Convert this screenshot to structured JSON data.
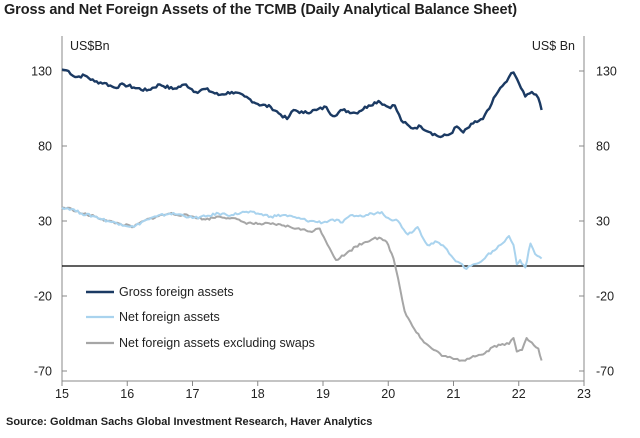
{
  "title": "Gross and Net Foreign Assets of the TCMB (Daily Analytical Balance Sheet)",
  "source": "Source: Goldman Sachs Global Investment Research, Haver Analytics",
  "colors": {
    "gross": "#1b3a63",
    "net": "#a9d3ee",
    "net_ex_swaps": "#a6a6a6",
    "zero_line": "#000000",
    "axis": "#888888"
  },
  "chart_data": {
    "type": "line",
    "title": "Gross and Net Foreign Assets of the TCMB (Daily Analytical Balance Sheet)",
    "ylabel_left": "US$Bn",
    "ylabel_right": "US$ Bn",
    "xlim": [
      15,
      23
    ],
    "ylim": [
      -70,
      130
    ],
    "x_ticks": [
      "15",
      "16",
      "17",
      "18",
      "19",
      "20",
      "21",
      "22",
      "23"
    ],
    "y_ticks": [
      "130",
      "80",
      "30",
      "-20",
      "-70"
    ],
    "grid": false,
    "legend_position": "bottom-left",
    "series": [
      {
        "name": "Gross foreign assets",
        "points": [
          [
            15.0,
            131
          ],
          [
            15.1,
            130
          ],
          [
            15.2,
            126
          ],
          [
            15.35,
            127
          ],
          [
            15.5,
            123
          ],
          [
            15.65,
            122
          ],
          [
            15.8,
            119
          ],
          [
            15.95,
            121
          ],
          [
            16.1,
            119
          ],
          [
            16.3,
            117
          ],
          [
            16.5,
            121
          ],
          [
            16.7,
            118
          ],
          [
            16.9,
            121
          ],
          [
            17.05,
            116
          ],
          [
            17.2,
            118
          ],
          [
            17.4,
            114
          ],
          [
            17.6,
            116
          ],
          [
            17.8,
            113
          ],
          [
            18.0,
            108
          ],
          [
            18.2,
            106
          ],
          [
            18.35,
            101
          ],
          [
            18.45,
            98
          ],
          [
            18.55,
            104
          ],
          [
            18.7,
            102
          ],
          [
            18.9,
            104
          ],
          [
            19.05,
            106
          ],
          [
            19.15,
            100
          ],
          [
            19.3,
            104
          ],
          [
            19.5,
            102
          ],
          [
            19.7,
            107
          ],
          [
            19.85,
            110
          ],
          [
            20.0,
            106
          ],
          [
            20.1,
            107
          ],
          [
            20.2,
            97
          ],
          [
            20.35,
            92
          ],
          [
            20.5,
            93
          ],
          [
            20.65,
            89
          ],
          [
            20.8,
            86
          ],
          [
            20.95,
            88
          ],
          [
            21.05,
            93
          ],
          [
            21.15,
            89
          ],
          [
            21.3,
            95
          ],
          [
            21.45,
            98
          ],
          [
            21.55,
            105
          ],
          [
            21.65,
            114
          ],
          [
            21.75,
            120
          ],
          [
            21.85,
            126
          ],
          [
            21.92,
            129
          ],
          [
            22.0,
            122
          ],
          [
            22.1,
            113
          ],
          [
            22.2,
            116
          ],
          [
            22.3,
            112
          ],
          [
            22.35,
            104
          ]
        ]
      },
      {
        "name": "Net foreign assets",
        "points": [
          [
            15.0,
            39
          ],
          [
            15.15,
            38
          ],
          [
            15.3,
            35
          ],
          [
            15.5,
            33
          ],
          [
            15.7,
            30
          ],
          [
            15.9,
            28
          ],
          [
            16.1,
            26
          ],
          [
            16.25,
            30
          ],
          [
            16.45,
            33
          ],
          [
            16.65,
            35
          ],
          [
            16.85,
            34
          ],
          [
            17.0,
            32
          ],
          [
            17.2,
            33
          ],
          [
            17.4,
            35
          ],
          [
            17.6,
            34
          ],
          [
            17.8,
            36
          ],
          [
            18.0,
            35
          ],
          [
            18.2,
            33
          ],
          [
            18.4,
            34
          ],
          [
            18.6,
            32
          ],
          [
            18.8,
            30
          ],
          [
            19.0,
            29
          ],
          [
            19.15,
            31
          ],
          [
            19.3,
            29
          ],
          [
            19.45,
            34
          ],
          [
            19.6,
            33
          ],
          [
            19.75,
            35
          ],
          [
            19.9,
            36
          ],
          [
            20.0,
            32
          ],
          [
            20.15,
            30
          ],
          [
            20.3,
            21
          ],
          [
            20.45,
            26
          ],
          [
            20.6,
            14
          ],
          [
            20.75,
            16
          ],
          [
            20.9,
            11
          ],
          [
            21.0,
            5
          ],
          [
            21.1,
            2
          ],
          [
            21.2,
            -2
          ],
          [
            21.3,
            1
          ],
          [
            21.45,
            4
          ],
          [
            21.6,
            10
          ],
          [
            21.75,
            15
          ],
          [
            21.85,
            20
          ],
          [
            21.92,
            14
          ],
          [
            21.97,
            1
          ],
          [
            22.02,
            4
          ],
          [
            22.1,
            -1
          ],
          [
            22.18,
            15
          ],
          [
            22.25,
            8
          ],
          [
            22.35,
            5
          ]
        ]
      },
      {
        "name": "Net foreign assets excluding swaps",
        "points": [
          [
            15.0,
            39
          ],
          [
            15.15,
            38
          ],
          [
            15.3,
            35
          ],
          [
            15.5,
            33
          ],
          [
            15.7,
            30
          ],
          [
            15.9,
            28
          ],
          [
            16.1,
            26
          ],
          [
            16.25,
            30
          ],
          [
            16.45,
            33
          ],
          [
            16.65,
            35
          ],
          [
            16.85,
            34
          ],
          [
            17.0,
            33
          ],
          [
            17.2,
            31
          ],
          [
            17.4,
            33
          ],
          [
            17.6,
            32
          ],
          [
            17.8,
            29
          ],
          [
            18.0,
            28
          ],
          [
            18.2,
            28
          ],
          [
            18.4,
            27
          ],
          [
            18.6,
            25
          ],
          [
            18.8,
            23
          ],
          [
            18.95,
            25
          ],
          [
            19.1,
            12
          ],
          [
            19.2,
            4
          ],
          [
            19.35,
            8
          ],
          [
            19.5,
            13
          ],
          [
            19.65,
            16
          ],
          [
            19.8,
            19
          ],
          [
            19.95,
            17
          ],
          [
            20.0,
            14
          ],
          [
            20.08,
            5
          ],
          [
            20.15,
            -8
          ],
          [
            20.25,
            -30
          ],
          [
            20.4,
            -42
          ],
          [
            20.55,
            -51
          ],
          [
            20.7,
            -56
          ],
          [
            20.85,
            -60
          ],
          [
            21.0,
            -62
          ],
          [
            21.15,
            -63
          ],
          [
            21.3,
            -60
          ],
          [
            21.45,
            -59
          ],
          [
            21.6,
            -54
          ],
          [
            21.75,
            -52
          ],
          [
            21.85,
            -52
          ],
          [
            21.92,
            -48
          ],
          [
            21.97,
            -57
          ],
          [
            22.05,
            -56
          ],
          [
            22.12,
            -48
          ],
          [
            22.2,
            -51
          ],
          [
            22.3,
            -55
          ],
          [
            22.35,
            -63
          ]
        ]
      }
    ]
  }
}
